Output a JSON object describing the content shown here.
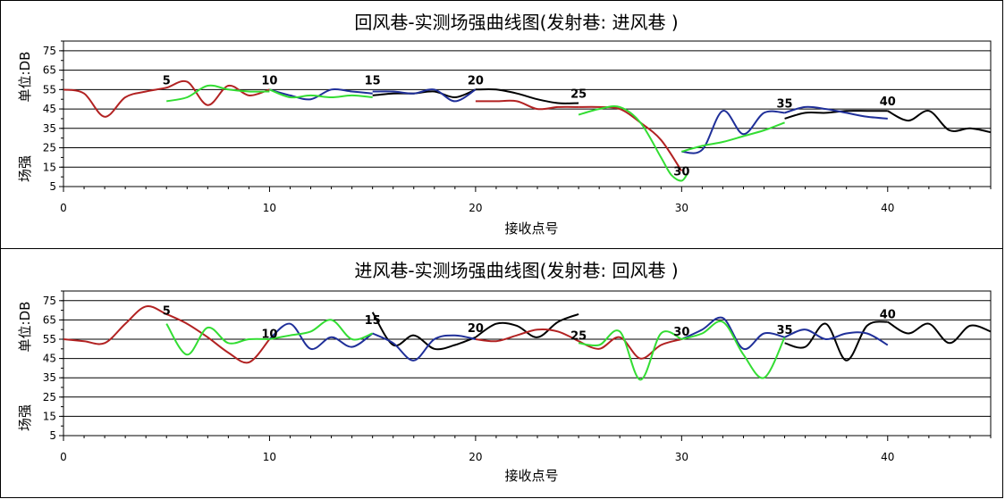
{
  "chart_data": [
    {
      "type": "line",
      "title": "回风巷-实测场强曲线图(发射巷: 进风巷 )",
      "xlabel": "接收点号",
      "ylabel_top": "单位:DB",
      "ylabel_bottom": "场强",
      "xlim": [
        0,
        45
      ],
      "ylim": [
        5,
        80
      ],
      "xticks": [
        0,
        10,
        20,
        30,
        40
      ],
      "yticks": [
        5,
        15,
        25,
        35,
        45,
        55,
        65,
        75
      ],
      "grid": true,
      "point_labels": [
        {
          "text": "5",
          "x": 5,
          "y": 55
        },
        {
          "text": "10",
          "x": 10,
          "y": 55
        },
        {
          "text": "15",
          "x": 15,
          "y": 55
        },
        {
          "text": "20",
          "x": 20,
          "y": 55
        },
        {
          "text": "25",
          "x": 25,
          "y": 48
        },
        {
          "text": "30",
          "x": 30,
          "y": 8
        },
        {
          "text": "35",
          "x": 35,
          "y": 43
        },
        {
          "text": "40",
          "x": 40,
          "y": 44
        }
      ],
      "series": [
        {
          "color": "#b22222",
          "x": [
            0,
            1,
            2,
            3,
            4,
            5,
            6,
            7,
            8,
            9,
            10
          ],
          "y": [
            55,
            53,
            41,
            51,
            54,
            56,
            59,
            47,
            57,
            52,
            55
          ]
        },
        {
          "color": "#33dd33",
          "x": [
            5,
            6,
            7,
            8,
            9,
            10
          ],
          "y": [
            49,
            51,
            57,
            55,
            54,
            54
          ]
        },
        {
          "color": "#1f2f99",
          "x": [
            10,
            11,
            12,
            13,
            14,
            15
          ],
          "y": [
            55,
            52,
            50,
            55,
            54,
            53
          ]
        },
        {
          "color": "#33dd33",
          "x": [
            10,
            11,
            12,
            13,
            14,
            15
          ],
          "y": [
            55,
            51,
            52,
            51,
            52,
            51
          ]
        },
        {
          "color": "#000000",
          "x": [
            15,
            16,
            17,
            18,
            19,
            20
          ],
          "y": [
            52,
            53,
            53,
            54,
            51,
            55
          ]
        },
        {
          "color": "#1f2f99",
          "x": [
            15,
            16,
            17,
            18,
            19,
            20
          ],
          "y": [
            54,
            54,
            53,
            55,
            49,
            55
          ]
        },
        {
          "color": "#000000",
          "x": [
            20,
            21,
            22,
            23,
            24,
            25
          ],
          "y": [
            55,
            55,
            53,
            50,
            48,
            48
          ]
        },
        {
          "color": "#b22222",
          "x": [
            20,
            21,
            22,
            23,
            24,
            25
          ],
          "y": [
            49,
            49,
            49,
            45,
            46,
            46
          ]
        },
        {
          "color": "#b22222",
          "x": [
            25,
            26,
            27,
            28,
            29,
            30
          ],
          "y": [
            46,
            46,
            45,
            38,
            29,
            13
          ]
        },
        {
          "color": "#33dd33",
          "x": [
            25,
            26,
            27,
            28,
            29,
            29.5,
            30,
            30.3
          ],
          "y": [
            42,
            45,
            46,
            38,
            20,
            11,
            8,
            12
          ]
        },
        {
          "color": "#1f2f99",
          "x": [
            30,
            31,
            32,
            33,
            34,
            35
          ],
          "y": [
            23,
            24,
            44,
            32,
            43,
            43
          ]
        },
        {
          "color": "#33dd33",
          "x": [
            30,
            31,
            32,
            33,
            34,
            35
          ],
          "y": [
            23,
            26,
            28,
            31,
            34,
            38
          ]
        },
        {
          "color": "#000000",
          "x": [
            35,
            36,
            37,
            38,
            39,
            40
          ],
          "y": [
            40,
            43,
            43,
            44,
            44,
            44
          ]
        },
        {
          "color": "#1f2f99",
          "x": [
            35,
            36,
            37,
            38,
            39,
            40
          ],
          "y": [
            43,
            46,
            45,
            43,
            41,
            40
          ]
        },
        {
          "color": "#000000",
          "x": [
            40,
            41,
            42,
            43,
            44,
            45
          ],
          "y": [
            44,
            39,
            44,
            34,
            35,
            33
          ]
        }
      ]
    },
    {
      "type": "line",
      "title": "进风巷-实测场强曲线图(发射巷: 回风巷 )",
      "xlabel": "接收点号",
      "ylabel_top": "单位:DB",
      "ylabel_bottom": "场强",
      "xlim": [
        0,
        45
      ],
      "ylim": [
        5,
        80
      ],
      "xticks": [
        0,
        10,
        20,
        30,
        40
      ],
      "yticks": [
        5,
        15,
        25,
        35,
        45,
        55,
        65,
        75
      ],
      "grid": true,
      "point_labels": [
        {
          "text": "5",
          "x": 5,
          "y": 65
        },
        {
          "text": "10",
          "x": 10,
          "y": 53
        },
        {
          "text": "15",
          "x": 15,
          "y": 60
        },
        {
          "text": "20",
          "x": 20,
          "y": 56
        },
        {
          "text": "25",
          "x": 25,
          "y": 52
        },
        {
          "text": "30",
          "x": 30,
          "y": 54
        },
        {
          "text": "35",
          "x": 35,
          "y": 55
        },
        {
          "text": "40",
          "x": 40,
          "y": 63
        }
      ],
      "series": [
        {
          "color": "#b22222",
          "x": [
            0,
            1,
            2,
            3,
            4,
            5,
            6,
            7,
            8,
            9,
            10
          ],
          "y": [
            55,
            54,
            53,
            63,
            72,
            68,
            63,
            56,
            48,
            43,
            55
          ]
        },
        {
          "color": "#33dd33",
          "x": [
            5,
            6,
            7,
            8,
            9,
            10
          ],
          "y": [
            63,
            47,
            61,
            53,
            55,
            55
          ]
        },
        {
          "color": "#1f2f99",
          "x": [
            10,
            11,
            12,
            13,
            14,
            15
          ],
          "y": [
            55,
            63,
            50,
            56,
            51,
            58
          ]
        },
        {
          "color": "#33dd33",
          "x": [
            10,
            11,
            12,
            13,
            14,
            15
          ],
          "y": [
            55,
            57,
            59,
            65,
            55,
            58
          ]
        },
        {
          "color": "#000000",
          "x": [
            15,
            16,
            17,
            18,
            19,
            20
          ],
          "y": [
            69,
            52,
            57,
            50,
            52,
            56
          ]
        },
        {
          "color": "#1f2f99",
          "x": [
            15,
            16,
            17,
            18,
            19,
            20
          ],
          "y": [
            58,
            53,
            44,
            55,
            57,
            55
          ]
        },
        {
          "color": "#000000",
          "x": [
            20,
            21,
            22,
            23,
            24,
            25
          ],
          "y": [
            56,
            63,
            62,
            56,
            64,
            68
          ]
        },
        {
          "color": "#b22222",
          "x": [
            20,
            21,
            22,
            23,
            24,
            25
          ],
          "y": [
            55,
            54,
            57,
            60,
            59,
            54
          ]
        },
        {
          "color": "#b22222",
          "x": [
            25,
            26,
            27,
            28,
            29,
            30
          ],
          "y": [
            54,
            50,
            56,
            45,
            52,
            55
          ]
        },
        {
          "color": "#33dd33",
          "x": [
            25,
            26,
            27,
            28,
            29,
            30
          ],
          "y": [
            53,
            52,
            59,
            34,
            58,
            55
          ]
        },
        {
          "color": "#1f2f99",
          "x": [
            30,
            31,
            32,
            33,
            34,
            35
          ],
          "y": [
            55,
            60,
            66,
            50,
            58,
            56
          ]
        },
        {
          "color": "#33dd33",
          "x": [
            30,
            31,
            32,
            33,
            34,
            35
          ],
          "y": [
            55,
            58,
            64,
            47,
            35,
            56
          ]
        },
        {
          "color": "#000000",
          "x": [
            35,
            36,
            37,
            38,
            39,
            40
          ],
          "y": [
            53,
            51,
            63,
            44,
            62,
            64
          ]
        },
        {
          "color": "#1f2f99",
          "x": [
            35,
            36,
            37,
            38,
            39,
            40
          ],
          "y": [
            56,
            60,
            55,
            58,
            58,
            52
          ]
        },
        {
          "color": "#000000",
          "x": [
            40,
            41,
            42,
            43,
            44,
            45
          ],
          "y": [
            64,
            58,
            63,
            53,
            62,
            59
          ]
        }
      ]
    }
  ]
}
